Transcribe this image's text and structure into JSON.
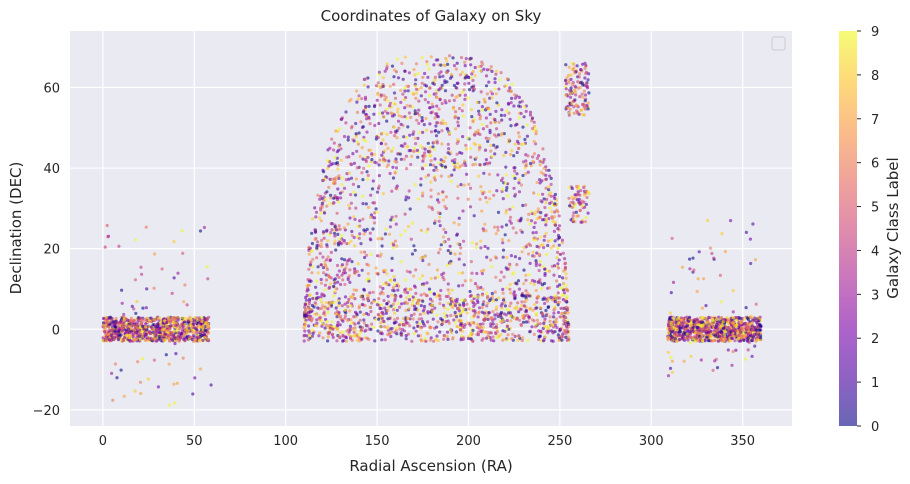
{
  "chart_data": {
    "type": "scatter",
    "title": "Coordinates of Galaxy on Sky",
    "xlabel": "Radial Ascension (RA)",
    "ylabel": "Declination (DEC)",
    "xlim": [
      -18,
      377
    ],
    "ylim": [
      -24,
      74
    ],
    "x_ticks": [
      0,
      50,
      100,
      150,
      200,
      250,
      300,
      350
    ],
    "y_ticks": [
      -20,
      0,
      20,
      40,
      60
    ],
    "grid": true,
    "background": "#eaeaf2",
    "grid_color": "#ffffff",
    "legend": "top-right (empty)",
    "colormap": "plasma",
    "marker_alpha": 0.6,
    "colorbar": {
      "label": "Galaxy Class Label",
      "min": 0,
      "max": 9,
      "ticks": [
        0,
        1,
        2,
        3,
        4,
        5,
        6,
        7,
        8,
        9
      ]
    },
    "color_variable": "Galaxy Class Label",
    "regions": [
      {
        "ra_range": [
          110,
          255
        ],
        "dec_range": [
          -3,
          68
        ],
        "shape": "dome",
        "density": "high"
      },
      {
        "ra_range": [
          253,
          266
        ],
        "dec_range": [
          53,
          66
        ],
        "shape": "strip",
        "density": "medium"
      },
      {
        "ra_range": [
          255,
          266
        ],
        "dec_range": [
          26,
          36
        ],
        "shape": "blob",
        "density": "low"
      },
      {
        "ra_range": [
          0,
          58
        ],
        "dec_range": [
          -3,
          3
        ],
        "shape": "equatorial band",
        "density": "high"
      },
      {
        "ra_range": [
          0,
          60
        ],
        "dec_range": [
          -20,
          26
        ],
        "shape": "sparse",
        "density": "low"
      },
      {
        "ra_range": [
          309,
          360
        ],
        "dec_range": [
          -3,
          3
        ],
        "shape": "equatorial band",
        "density": "high"
      },
      {
        "ra_range": [
          309,
          360
        ],
        "dec_range": [
          -12,
          27
        ],
        "shape": "sparse",
        "density": "low"
      }
    ]
  }
}
